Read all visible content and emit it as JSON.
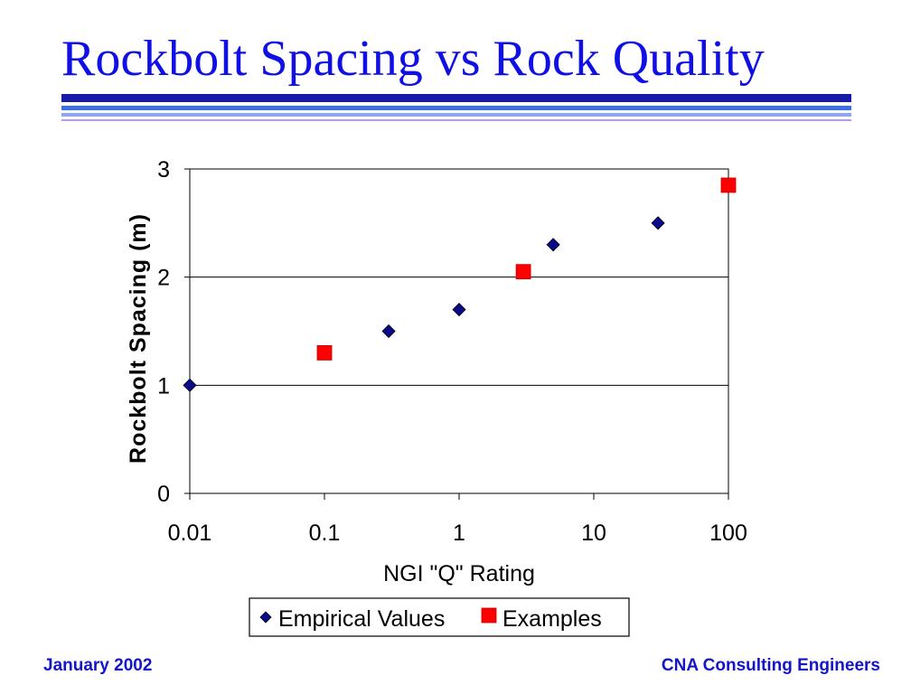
{
  "slide": {
    "title": "Rockbolt Spacing vs Rock Quality",
    "footer_left": "January 2002",
    "footer_right": "CNA Consulting Engineers",
    "colors": {
      "title": "#1010e6",
      "rule_dark": "#1a1aa8",
      "rule_mid": "#3a6fe8",
      "rule_light": "#8aa6ff",
      "rule_lavender": "#b59be6",
      "footer": "#1414c8"
    }
  },
  "chart_data": {
    "type": "scatter",
    "xlabel": "NGI \"Q\" Rating",
    "ylabel": "Rockbolt Spacing (m)",
    "xscale": "log",
    "xlim": [
      0.01,
      100
    ],
    "ylim": [
      0,
      3
    ],
    "xticks": [
      0.01,
      0.1,
      1,
      10,
      100
    ],
    "xtick_labels": [
      "0.01",
      "0.1",
      "1",
      "10",
      "100"
    ],
    "yticks": [
      0,
      1,
      2,
      3
    ],
    "ytick_labels": [
      "0",
      "1",
      "2",
      "3"
    ],
    "grid": "horizontal major gridlines",
    "legend_position": "bottom",
    "series": [
      {
        "name": "Empirical Values",
        "marker": "diamond",
        "color": "#0a0a8c",
        "points": [
          {
            "x": 0.01,
            "y": 1.0
          },
          {
            "x": 0.1,
            "y": 1.3
          },
          {
            "x": 0.3,
            "y": 1.5
          },
          {
            "x": 1,
            "y": 1.7
          },
          {
            "x": 5,
            "y": 2.3
          },
          {
            "x": 30,
            "y": 2.5
          }
        ]
      },
      {
        "name": "Examples",
        "marker": "square",
        "color": "#ff0000",
        "points": [
          {
            "x": 0.1,
            "y": 1.3
          },
          {
            "x": 3,
            "y": 2.05
          },
          {
            "x": 100,
            "y": 2.85
          }
        ]
      }
    ]
  }
}
